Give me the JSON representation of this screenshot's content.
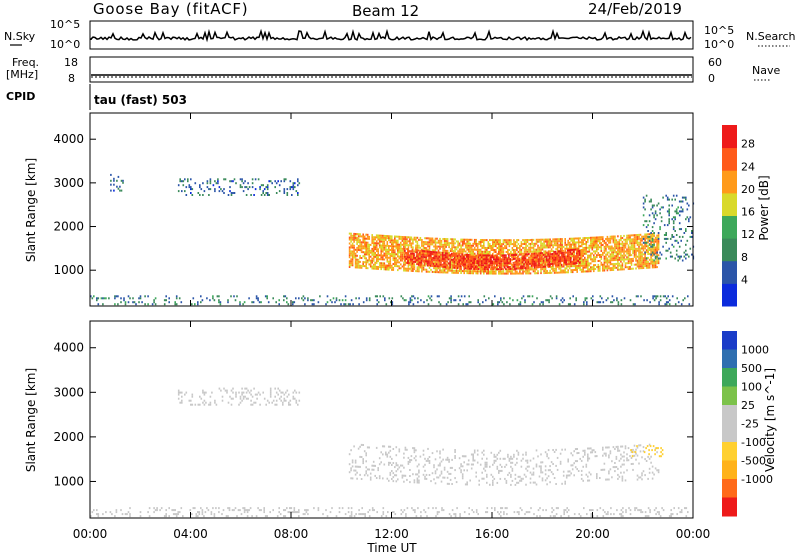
{
  "header": {
    "station": "Goose Bay (fitACF)",
    "beam": "Beam 12",
    "date": "24/Feb/2019"
  },
  "panel_labels": {
    "nsky": "N.Sky",
    "freq_top": "Freq.",
    "freq_unit": "[MHz]",
    "cpid": "CPID",
    "nsearch": "N.Search",
    "nave": "Nave",
    "cpid_value": "tau (fast) 503"
  },
  "axis_ticks": {
    "noise_top": "10^5",
    "noise_bottom": "10^0",
    "freq_top": "18",
    "freq_bottom": "8",
    "nave_top": "60",
    "nave_bottom": "0"
  },
  "colors": {
    "power_scale": [
      "#0b2bdc",
      "#2b55a8",
      "#3a8a5a",
      "#3da85a",
      "#d9d92a",
      "#ff9a1a",
      "#ff5a1a",
      "#ee1a1a"
    ],
    "velocity_scale": [
      "#ee1a1a",
      "#ff6a1a",
      "#ffb21a",
      "#ffd030",
      "#c8c8c8",
      "#c8c8c8",
      "#7cc24a",
      "#3da85a",
      "#2f6fb0",
      "#1a3cc8"
    ],
    "velocity_ground": "#c8c8c8"
  },
  "chart_data": [
    {
      "type": "heatmap",
      "title": "",
      "ylabel": "Slant Range [km]",
      "xlabel": "",
      "x_ticks": [
        "00:00",
        "04:00",
        "08:00",
        "12:00",
        "16:00",
        "20:00",
        "00:00"
      ],
      "xlim_hours": [
        0,
        24
      ],
      "y_ticks": [
        1000,
        2000,
        3000,
        4000
      ],
      "ylim_km": [
        180,
        4600
      ],
      "colorbar": {
        "label": "Power [dB]",
        "ticks": [
          "4",
          "8",
          "12",
          "16",
          "20",
          "24",
          "28"
        ],
        "range": [
          0,
          30
        ]
      },
      "regions": [
        {
          "label": "main echo band",
          "t0": 10.3,
          "t1": 22.6,
          "r0": 1050,
          "r1": 1850,
          "power_dB": 20
        },
        {
          "label": "core",
          "t0": 12.5,
          "t1": 19.5,
          "r0": 1150,
          "r1": 1500,
          "power_dB": 26
        },
        {
          "label": "near-range scatter",
          "t0": 0.0,
          "t1": 24.0,
          "r0": 200,
          "r1": 400,
          "power_dB": 8
        },
        {
          "label": "far-range patches 03-08h",
          "t0": 3.5,
          "t1": 8.3,
          "r0": 2700,
          "r1": 3100,
          "power_dB": 7
        },
        {
          "label": "far-range patch 01h",
          "t0": 0.8,
          "t1": 1.3,
          "r0": 2800,
          "r1": 3200,
          "power_dB": 7
        },
        {
          "label": "late scatter",
          "t0": 22.0,
          "t1": 24.0,
          "r0": 1200,
          "r1": 2700,
          "power_dB": 8
        }
      ]
    },
    {
      "type": "heatmap",
      "title": "",
      "ylabel": "Slant Range [km]",
      "xlabel": "Time UT",
      "x_ticks": [
        "00:00",
        "04:00",
        "08:00",
        "12:00",
        "16:00",
        "20:00",
        "00:00"
      ],
      "xlim_hours": [
        0,
        24
      ],
      "y_ticks": [
        1000,
        2000,
        3000,
        4000
      ],
      "ylim_km": [
        180,
        4600
      ],
      "colorbar": {
        "label": "Velocity [m s^-1]",
        "ticks": [
          "1000",
          "500",
          "100",
          "25",
          "-25",
          "-100",
          "-500",
          "-1000"
        ]
      },
      "regions": [
        {
          "label": "ground scatter band",
          "t0": 10.3,
          "t1": 22.6,
          "r0": 1050,
          "r1": 1850,
          "velocity": 0
        },
        {
          "label": "near-range scatter",
          "t0": 0.0,
          "t1": 24.0,
          "r0": 200,
          "r1": 400,
          "velocity": 0
        },
        {
          "label": "far-range patches",
          "t0": 3.5,
          "t1": 8.3,
          "r0": 2700,
          "r1": 3100,
          "velocity": 0
        },
        {
          "label": "negative velocity patch",
          "t0": 21.5,
          "t1": 22.8,
          "r0": 1500,
          "r1": 1800,
          "velocity": -150
        }
      ]
    }
  ]
}
